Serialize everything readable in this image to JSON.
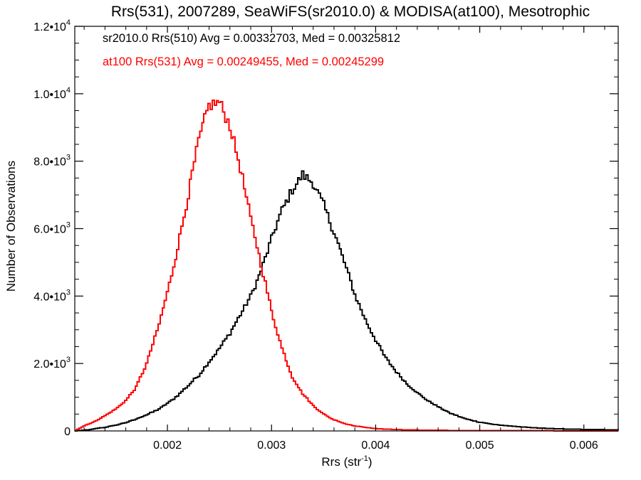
{
  "chart_data": {
    "type": "line",
    "title": "Rrs(531), 2007289, SeaWiFS(sr2010.0) & MODISA(at100), Mesotrophic",
    "xlabel": {
      "base": "Rrs (str",
      "superscript": "-1",
      "suffix": ")"
    },
    "ylabel": "Number of Observations",
    "xlim": [
      0.00111,
      0.00633
    ],
    "ylim": [
      0,
      12000
    ],
    "x_ticks": [
      {
        "value": 0.002,
        "label": "0.002"
      },
      {
        "value": 0.003,
        "label": "0.003"
      },
      {
        "value": 0.004,
        "label": "0.004"
      },
      {
        "value": 0.005,
        "label": "0.005"
      },
      {
        "value": 0.006,
        "label": "0.006"
      }
    ],
    "y_ticks": [
      {
        "value": 0,
        "mantissa": "0",
        "exponent": ""
      },
      {
        "value": 2000,
        "mantissa": "2.0•10",
        "exponent": "3"
      },
      {
        "value": 4000,
        "mantissa": "4.0•10",
        "exponent": "3"
      },
      {
        "value": 6000,
        "mantissa": "6.0•10",
        "exponent": "3"
      },
      {
        "value": 8000,
        "mantissa": "8.0•10",
        "exponent": "3"
      },
      {
        "value": 10000,
        "mantissa": "1.0•10",
        "exponent": "4"
      },
      {
        "value": 12000,
        "mantissa": "1.2•10",
        "exponent": "4"
      }
    ],
    "style": "step-histogram",
    "grid": false,
    "legend_position": "top-left",
    "series": [
      {
        "name": "sr2010.0 Rrs(510) Avg = 0.00332703, Med = 0.00325812",
        "color": "#000000",
        "points": [
          [
            0.00111,
            0
          ],
          [
            0.0012,
            20
          ],
          [
            0.0013,
            60
          ],
          [
            0.0014,
            110
          ],
          [
            0.0015,
            170
          ],
          [
            0.0016,
            250
          ],
          [
            0.0017,
            350
          ],
          [
            0.0018,
            480
          ],
          [
            0.0019,
            620
          ],
          [
            0.002,
            820
          ],
          [
            0.0021,
            1050
          ],
          [
            0.0022,
            1350
          ],
          [
            0.0023,
            1650
          ],
          [
            0.0024,
            2050
          ],
          [
            0.0025,
            2450
          ],
          [
            0.0026,
            2900
          ],
          [
            0.0027,
            3450
          ],
          [
            0.0028,
            4000
          ],
          [
            0.0029,
            4750
          ],
          [
            0.003,
            5700
          ],
          [
            0.0031,
            6550
          ],
          [
            0.0032,
            7150
          ],
          [
            0.0033,
            7600
          ],
          [
            0.0034,
            7350
          ],
          [
            0.0035,
            6700
          ],
          [
            0.0036,
            5900
          ],
          [
            0.0037,
            5000
          ],
          [
            0.0038,
            4050
          ],
          [
            0.0039,
            3300
          ],
          [
            0.004,
            2700
          ],
          [
            0.0041,
            2150
          ],
          [
            0.0042,
            1750
          ],
          [
            0.0043,
            1400
          ],
          [
            0.0044,
            1130
          ],
          [
            0.0045,
            900
          ],
          [
            0.0046,
            720
          ],
          [
            0.0047,
            550
          ],
          [
            0.0048,
            430
          ],
          [
            0.0049,
            330
          ],
          [
            0.005,
            260
          ],
          [
            0.0051,
            210
          ],
          [
            0.0052,
            170
          ],
          [
            0.0054,
            120
          ],
          [
            0.0056,
            80
          ],
          [
            0.0058,
            60
          ],
          [
            0.006,
            45
          ],
          [
            0.00633,
            30
          ]
        ]
      },
      {
        "name": "at100 Rrs(531) Avg = 0.00249455, Med = 0.00245299",
        "color": "#ff0000",
        "points": [
          [
            0.00111,
            0
          ],
          [
            0.0012,
            150
          ],
          [
            0.0013,
            280
          ],
          [
            0.0014,
            450
          ],
          [
            0.0015,
            640
          ],
          [
            0.0016,
            900
          ],
          [
            0.0017,
            1300
          ],
          [
            0.0018,
            2000
          ],
          [
            0.0019,
            2950
          ],
          [
            0.002,
            4100
          ],
          [
            0.0021,
            5450
          ],
          [
            0.0022,
            7000
          ],
          [
            0.0023,
            8600
          ],
          [
            0.0024,
            9650
          ],
          [
            0.0025,
            9750
          ],
          [
            0.0026,
            9050
          ],
          [
            0.0027,
            7800
          ],
          [
            0.0028,
            6300
          ],
          [
            0.0029,
            4950
          ],
          [
            0.003,
            3550
          ],
          [
            0.0031,
            2450
          ],
          [
            0.0032,
            1600
          ],
          [
            0.0033,
            1100
          ],
          [
            0.0034,
            750
          ],
          [
            0.0035,
            500
          ],
          [
            0.0036,
            330
          ],
          [
            0.0037,
            220
          ],
          [
            0.0038,
            150
          ],
          [
            0.0039,
            105
          ],
          [
            0.004,
            70
          ],
          [
            0.0042,
            40
          ],
          [
            0.0045,
            20
          ],
          [
            0.005,
            8
          ],
          [
            0.00633,
            3
          ]
        ]
      }
    ]
  }
}
